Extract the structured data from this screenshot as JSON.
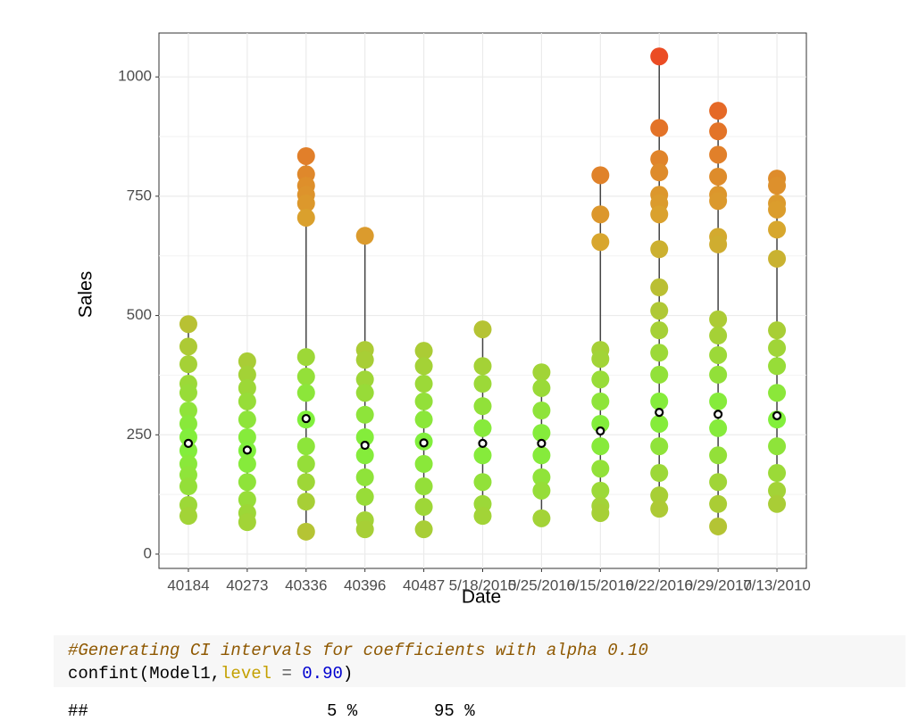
{
  "chart_data": {
    "type": "strip",
    "x_label": "Date",
    "y_label": "Sales",
    "categories": [
      "40184",
      "40273",
      "40336",
      "40396",
      "40487",
      "5/18/2010",
      "5/25/2010",
      "6/15/2010",
      "6/22/2010",
      "6/29/2010",
      "7/13/2010"
    ],
    "values": [
      [
        482,
        435,
        398,
        357,
        338,
        301,
        273,
        245,
        217,
        189,
        166,
        142,
        103,
        80
      ],
      [
        404,
        376,
        348,
        320,
        282,
        245,
        217,
        189,
        151,
        114,
        86,
        67
      ],
      [
        834,
        796,
        772,
        753,
        735,
        705,
        413,
        372,
        338,
        282,
        226,
        189,
        151,
        110,
        47
      ],
      [
        667,
        428,
        407,
        366,
        338,
        292,
        245,
        207,
        161,
        120,
        71,
        52
      ],
      [
        426,
        394,
        357,
        320,
        282,
        236,
        189,
        142,
        99,
        52
      ],
      [
        471,
        394,
        357,
        310,
        264,
        207,
        151,
        105,
        80
      ],
      [
        381,
        348,
        301,
        254,
        207,
        161,
        133,
        75
      ],
      [
        794,
        712,
        654,
        428,
        409,
        366,
        320,
        273,
        226,
        179,
        133,
        101,
        86
      ],
      [
        1043,
        893,
        828,
        800,
        753,
        735,
        712,
        639,
        559,
        510,
        469,
        422,
        376,
        320,
        273,
        226,
        170,
        123,
        95
      ],
      [
        929,
        886,
        837,
        791,
        753,
        740,
        665,
        649,
        492,
        458,
        417,
        376,
        320,
        264,
        207,
        151,
        105,
        58
      ],
      [
        787,
        772,
        735,
        722,
        680,
        619,
        469,
        432,
        394,
        338,
        282,
        226,
        170,
        133,
        105
      ]
    ],
    "means": [
      232,
      218,
      284,
      228,
      233,
      232,
      232,
      258,
      297,
      293,
      290
    ],
    "colors": [
      "#80f03c",
      "#d9a52e",
      "#ee3e22"
    ],
    "range_color": "#444444",
    "mean_color": "#000000",
    "ylim": [
      -30,
      1092
    ],
    "yticks": [
      0,
      250,
      500,
      750,
      1000
    ],
    "grid": true
  },
  "code": {
    "comment": "#Generating CI intervals for coefficients with alpha 0.10",
    "line": [
      "confint(Model1,",
      "level",
      " = ",
      "0.90",
      ")"
    ]
  },
  "output": {
    "header": [
      "##",
      "5 %",
      "95 %"
    ]
  }
}
